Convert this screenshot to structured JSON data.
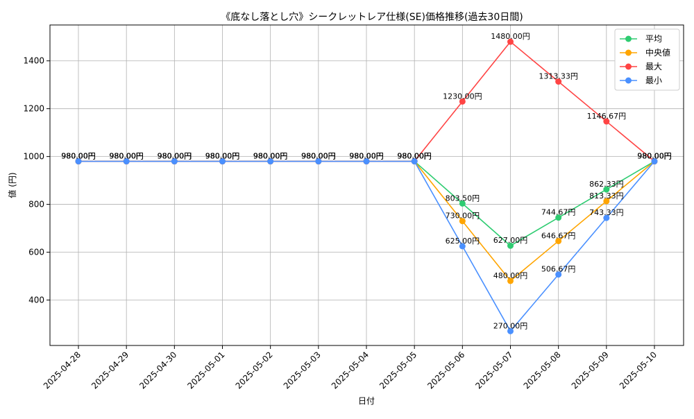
{
  "chart_data": {
    "type": "line",
    "title": "《底なし落とし穴》シークレットレア仕様(SE)価格推移(過去30日間)",
    "xlabel": "日付",
    "ylabel": "値 (円)",
    "categories": [
      "2025-04-28",
      "2025-04-29",
      "2025-04-30",
      "2025-05-01",
      "2025-05-02",
      "2025-05-03",
      "2025-05-04",
      "2025-05-05",
      "2025-05-06",
      "2025-05-07",
      "2025-05-08",
      "2025-05-09",
      "2025-05-10"
    ],
    "ylim": [
      210,
      1550
    ],
    "yticks": [
      400,
      600,
      800,
      1000,
      1200,
      1400
    ],
    "grid": true,
    "legend_position": "top-right",
    "series": [
      {
        "name": "平均",
        "color": "#2ecc71",
        "values": [
          980,
          980,
          980,
          980,
          980,
          980,
          980,
          980,
          803.5,
          627,
          744.67,
          862.33,
          980
        ]
      },
      {
        "name": "中央値",
        "color": "#ffa500",
        "values": [
          980,
          980,
          980,
          980,
          980,
          980,
          980,
          980,
          730,
          480,
          646.67,
          813.33,
          980
        ]
      },
      {
        "name": "最大",
        "color": "#ff4444",
        "values": [
          980,
          980,
          980,
          980,
          980,
          980,
          980,
          980,
          1230,
          1480,
          1313.33,
          1146.67,
          980
        ]
      },
      {
        "name": "最小",
        "color": "#4a90ff",
        "values": [
          980,
          980,
          980,
          980,
          980,
          980,
          980,
          980,
          625,
          270,
          506.67,
          743.33,
          980
        ]
      }
    ],
    "data_labels": [
      {
        "series": 0,
        "labels": [
          "980.00円",
          "980.00円",
          "980.00円",
          "980.00円",
          "980.00円",
          "980.00円",
          "980.00円",
          "980.00円",
          "803.50円",
          "627.00円",
          "744.67円",
          "862.33円",
          "980.00円"
        ]
      },
      {
        "series": 1,
        "labels": [
          "980.00円",
          "980.00円",
          "980.00円",
          "980.00円",
          "980.00円",
          "980.00円",
          "980.00円",
          "980.00円",
          "730.00円",
          "480.00円",
          "646.67円",
          "813.33円",
          "980.00円"
        ]
      },
      {
        "series": 2,
        "labels": [
          "980.00円",
          "980.00円",
          "980.00円",
          "980.00円",
          "980.00円",
          "980.00円",
          "980.00円",
          "980.00円",
          "1230.00円",
          "1480.00円",
          "1313.33円",
          "1146.67円",
          "980.00円"
        ]
      },
      {
        "series": 3,
        "labels": [
          "980.00円",
          "980.00円",
          "980.00円",
          "980.00円",
          "980.00円",
          "980.00円",
          "980.00円",
          "980.00円",
          "625.00円",
          "270.00円",
          "506.67円",
          "743.33円",
          "980.00円"
        ]
      }
    ]
  }
}
